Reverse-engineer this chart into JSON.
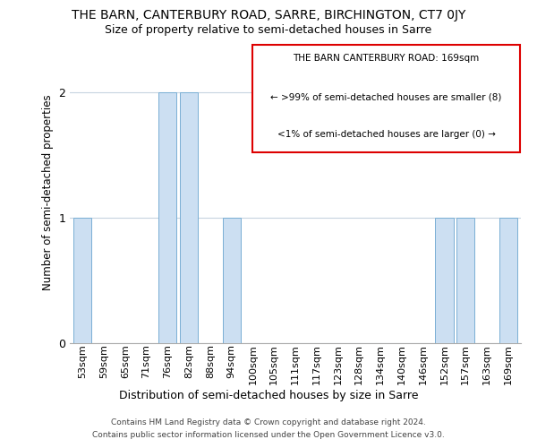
{
  "title": "THE BARN, CANTERBURY ROAD, SARRE, BIRCHINGTON, CT7 0JY",
  "subtitle": "Size of property relative to semi-detached houses in Sarre",
  "xlabel": "Distribution of semi-detached houses by size in Sarre",
  "ylabel": "Number of semi-detached properties",
  "categories": [
    "53sqm",
    "59sqm",
    "65sqm",
    "71sqm",
    "76sqm",
    "82sqm",
    "88sqm",
    "94sqm",
    "100sqm",
    "105sqm",
    "111sqm",
    "117sqm",
    "123sqm",
    "128sqm",
    "134sqm",
    "140sqm",
    "146sqm",
    "152sqm",
    "157sqm",
    "163sqm",
    "169sqm"
  ],
  "values": [
    1,
    0,
    0,
    0,
    2,
    2,
    0,
    1,
    0,
    0,
    0,
    0,
    0,
    0,
    0,
    0,
    0,
    1,
    1,
    0,
    1
  ],
  "bar_color": "#ccdff2",
  "bar_edge_color": "#7aafd4",
  "ylim": [
    0,
    2.4
  ],
  "yticks": [
    0,
    1,
    2
  ],
  "annotation_title": "THE BARN CANTERBURY ROAD: 169sqm",
  "annotation_line1": "← >99% of semi-detached houses are smaller (8)",
  "annotation_line2": "<1% of semi-detached houses are larger (0) →",
  "annotation_box_color": "#ffffff",
  "annotation_box_edge": "#dd0000",
  "footer_line1": "Contains HM Land Registry data © Crown copyright and database right 2024.",
  "footer_line2": "Contains public sector information licensed under the Open Government Licence v3.0.",
  "background_color": "#ffffff",
  "grid_color": "#c8d4e0"
}
